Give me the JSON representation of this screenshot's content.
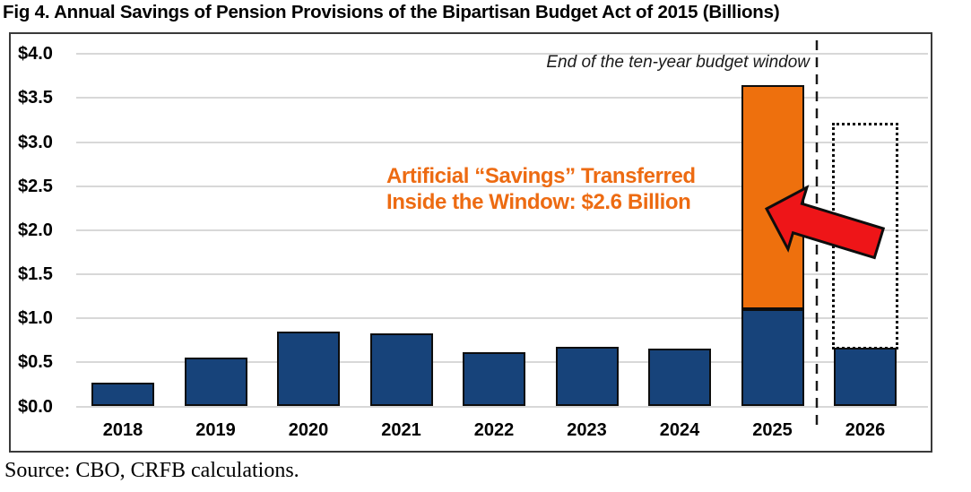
{
  "title": "Fig 4. Annual Savings of Pension Provisions of the Bipartisan Budget Act of 2015 (Billions)",
  "source": "Source: CBO, CRFB calculations.",
  "annotations": {
    "budget_window": "End of the ten-year budget window",
    "artificial_savings_line1": "Artificial “Savings” Transferred",
    "artificial_savings_line2": "Inside the Window: $2.6 Billion"
  },
  "colors": {
    "bar_blue": "#17437A",
    "bar_orange": "#EE700D",
    "annotation_orange": "#ED6B12",
    "arrow_red": "#EE1518",
    "gridline": "#D8D8D8",
    "box_border": "#3A3A3A"
  },
  "chart_data": {
    "type": "bar",
    "stacked": true,
    "title": "Fig 4. Annual Savings of Pension Provisions of the Bipartisan Budget Act of 2015 (Billions)",
    "categories": [
      "2018",
      "2019",
      "2020",
      "2021",
      "2022",
      "2023",
      "2024",
      "2025",
      "2026"
    ],
    "series": [
      {
        "name": "savings inside budget window (blue)",
        "values": [
          0.27,
          0.55,
          0.85,
          0.83,
          0.62,
          0.68,
          0.66,
          1.1,
          0.67
        ]
      },
      {
        "name": "artificial savings transferred inside window (orange)",
        "values": [
          0,
          0,
          0,
          0,
          0,
          0,
          0,
          2.55,
          0
        ]
      }
    ],
    "phantom_bar": {
      "category": "2026",
      "from": 0.67,
      "to": 3.22,
      "style": "dotted-outline",
      "meaning": "savings moved out of 2026 into the window"
    },
    "y_axis": {
      "labels": [
        "$0.0",
        "$0.5",
        "$1.0",
        "$1.5",
        "$2.0",
        "$2.5",
        "$3.0",
        "$3.5",
        "$4.0"
      ],
      "values": [
        0,
        0.5,
        1,
        1.5,
        2,
        2.5,
        3,
        3.5,
        4
      ],
      "range": [
        0,
        4.0
      ]
    },
    "grid": true,
    "legend": "none",
    "budget_window_divider_after": "2025",
    "transferred_amount_billions": 2.6
  }
}
